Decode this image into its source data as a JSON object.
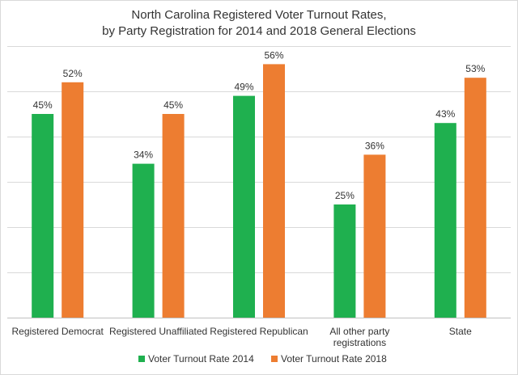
{
  "chart_data": {
    "type": "bar",
    "title": "North Carolina Registered Voter Turnout Rates,\nby Party Registration for 2014 and 2018 General Elections",
    "title_lines": [
      "North Carolina Registered Voter Turnout Rates,",
      "by Party Registration for 2014 and 2018 General Elections"
    ],
    "xlabel": "",
    "ylabel": "",
    "categories": [
      "Registered Democrat",
      "Registered Unaffiliated",
      "Registered Republican",
      "All other party registrations",
      "State"
    ],
    "category_lines": [
      [
        "Registered Democrat"
      ],
      [
        "Registered Unaffiliated"
      ],
      [
        "Registered Republican"
      ],
      [
        "All other party",
        "registrations"
      ],
      [
        "State"
      ]
    ],
    "series": [
      {
        "name": "Voter Turnout Rate 2014",
        "values": [
          45,
          34,
          49,
          25,
          43
        ],
        "labels": [
          "45%",
          "34%",
          "49%",
          "25%",
          "43%"
        ],
        "color": "#1fb04f"
      },
      {
        "name": "Voter Turnout Rate 2018",
        "values": [
          52,
          45,
          56,
          36,
          53
        ],
        "labels": [
          "52%",
          "45%",
          "56%",
          "36%",
          "53%"
        ],
        "color": "#ed7d31"
      }
    ],
    "ylim": [
      0,
      60
    ],
    "y_gridlines": [
      0,
      10,
      20,
      30,
      40,
      50,
      60
    ],
    "y_tick_labels_shown": false,
    "grid": true,
    "legend_position": "bottom"
  }
}
